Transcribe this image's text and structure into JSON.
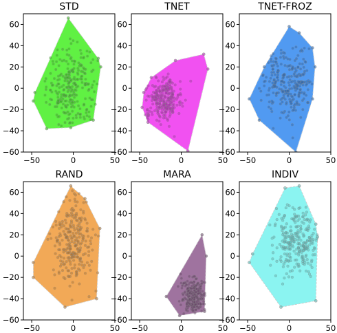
{
  "chart_data": [
    {
      "type": "scatter",
      "title": "STD",
      "xlim": [
        -60,
        50
      ],
      "ylim": [
        -60,
        70
      ],
      "xticks": [
        -50,
        0,
        50
      ],
      "yticks": [
        -60,
        -40,
        -20,
        0,
        20,
        40,
        60
      ],
      "xtick_labels": [
        "−50",
        "0",
        "50"
      ],
      "ytick_labels": [
        "−60",
        "−40",
        "−20",
        "0",
        "20",
        "40",
        "60"
      ],
      "color": "#44ee22",
      "hull": [
        [
          -6,
          66
        ],
        [
          30,
          28
        ],
        [
          33,
          20
        ],
        [
          24,
          -30
        ],
        [
          -3,
          -37
        ],
        [
          -32,
          -38
        ],
        [
          -48,
          -12
        ],
        [
          -46,
          -4
        ]
      ],
      "center": [
        -2,
        0
      ],
      "spread": [
        15,
        20
      ]
    },
    {
      "type": "scatter",
      "title": "TNET",
      "xlim": [
        -60,
        50
      ],
      "ylim": [
        -60,
        70
      ],
      "xticks": [
        -50,
        0,
        50
      ],
      "yticks": [
        -60,
        -40,
        -20,
        0,
        20,
        40,
        60
      ],
      "xtick_labels": [
        "−50",
        "0",
        "50"
      ],
      "ytick_labels": [
        "−60",
        "−40",
        "−20",
        "0",
        "20",
        "40",
        "60"
      ],
      "color": "#ee33ee",
      "hull": [
        [
          -36,
          10
        ],
        [
          -7,
          26
        ],
        [
          27,
          32
        ],
        [
          32,
          18
        ],
        [
          8,
          -59
        ],
        [
          -40,
          -32
        ],
        [
          -47,
          -18
        ],
        [
          -45,
          -4
        ]
      ],
      "center": [
        -22,
        -10
      ],
      "spread": [
        11,
        10
      ]
    },
    {
      "type": "scatter",
      "title": "TNET-FROZ",
      "xlim": [
        -60,
        50
      ],
      "ylim": [
        -60,
        70
      ],
      "xticks": [
        -50,
        0,
        50
      ],
      "yticks": [
        -60,
        -40,
        -20,
        0,
        20,
        40,
        60
      ],
      "xtick_labels": [
        "−50",
        "0",
        "50"
      ],
      "ytick_labels": [
        "−60",
        "−40",
        "−20",
        "0",
        "20",
        "40",
        "60"
      ],
      "color": "#3388ee",
      "hull": [
        [
          0,
          58
        ],
        [
          12,
          52
        ],
        [
          28,
          38
        ],
        [
          31,
          20
        ],
        [
          28,
          -10
        ],
        [
          8,
          -60
        ],
        [
          -36,
          -30
        ],
        [
          -48,
          -10
        ],
        [
          -30,
          20
        ]
      ],
      "center": [
        0,
        5
      ],
      "spread": [
        16,
        16
      ]
    },
    {
      "type": "scatter",
      "title": "RAND",
      "xlim": [
        -60,
        50
      ],
      "ylim": [
        -60,
        70
      ],
      "xticks": [
        -50,
        0,
        50
      ],
      "yticks": [
        -60,
        -40,
        -20,
        0,
        20,
        40,
        60
      ],
      "xtick_labels": [
        "−50",
        "0",
        "50"
      ],
      "ytick_labels": [
        "−60",
        "−40",
        "−20",
        "0",
        "20",
        "40",
        "60"
      ],
      "color": "#f09a3a",
      "hull": [
        [
          -3,
          66
        ],
        [
          14,
          54
        ],
        [
          32,
          26
        ],
        [
          28,
          -40
        ],
        [
          -10,
          -48
        ],
        [
          -48,
          -20
        ],
        [
          -48,
          -6
        ]
      ],
      "center": [
        0,
        15
      ],
      "spread": [
        13,
        22
      ]
    },
    {
      "type": "scatter",
      "title": "MARA",
      "xlim": [
        -60,
        50
      ],
      "ylim": [
        -60,
        70
      ],
      "xticks": [
        -50,
        0,
        50
      ],
      "yticks": [
        -60,
        -40,
        -20,
        0,
        20,
        40,
        60
      ],
      "xtick_labels": [
        "−50",
        "0",
        "50"
      ],
      "ytick_labels": [
        "−60",
        "−40",
        "−20",
        "0",
        "20",
        "40",
        "60"
      ],
      "color": "#8e5a8e",
      "hull": [
        [
          25,
          20
        ],
        [
          30,
          0
        ],
        [
          28,
          -52
        ],
        [
          -2,
          -56
        ],
        [
          -18,
          -38
        ]
      ],
      "center": [
        15,
        -38
      ],
      "spread": [
        7,
        9
      ]
    },
    {
      "type": "scatter",
      "title": "INDIV",
      "xlim": [
        -60,
        50
      ],
      "ylim": [
        -60,
        70
      ],
      "xticks": [
        -50,
        0,
        50
      ],
      "yticks": [
        -60,
        -40,
        -20,
        0,
        20,
        40,
        60
      ],
      "xtick_labels": [
        "−50",
        "0",
        "50"
      ],
      "ytick_labels": [
        "−60",
        "−40",
        "−20",
        "0",
        "20",
        "40",
        "60"
      ],
      "color": "#77f2ee",
      "hull": [
        [
          12,
          66
        ],
        [
          32,
          30
        ],
        [
          34,
          18
        ],
        [
          32,
          -42
        ],
        [
          -10,
          -48
        ],
        [
          -48,
          -6
        ],
        [
          -44,
          2
        ],
        [
          -5,
          64
        ]
      ],
      "center": [
        10,
        15
      ],
      "spread": [
        15,
        18
      ]
    }
  ]
}
